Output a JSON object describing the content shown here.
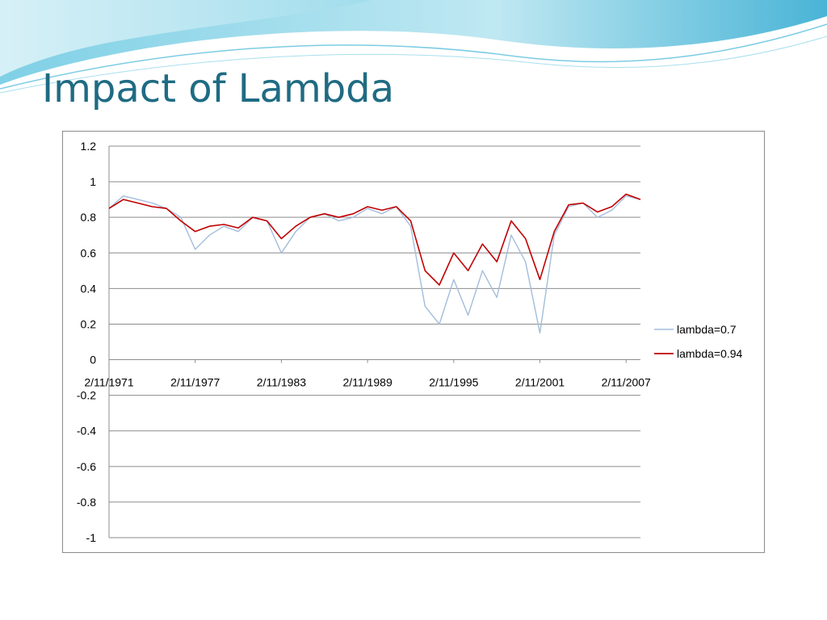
{
  "slide": {
    "title": "Impact of Lambda"
  },
  "colors": {
    "title": "#1f6b83",
    "series_light": "#a3bddb",
    "series_dark": "#c00000",
    "gridline": "#8c8c8c"
  },
  "chart_data": {
    "type": "line",
    "title": "",
    "xlabel": "",
    "ylabel": "",
    "ylim": [
      -1,
      1.2
    ],
    "yticks": [
      1.2,
      1,
      0.8,
      0.6,
      0.4,
      0.2,
      0,
      -0.2,
      -0.4,
      -0.6,
      -0.8,
      -1
    ],
    "xlim": [
      "2/11/1971",
      "2/11/2008"
    ],
    "xticks": [
      "2/11/1971",
      "2/11/1977",
      "2/11/1983",
      "2/11/1989",
      "2/11/1995",
      "2/11/2001",
      "2/11/2007"
    ],
    "grid": true,
    "legend": "right",
    "x": [
      "2/11/1971",
      "2/11/1972",
      "2/11/1973",
      "2/11/1974",
      "2/11/1975",
      "2/11/1976",
      "2/11/1977",
      "2/11/1978",
      "2/11/1979",
      "2/11/1980",
      "2/11/1981",
      "2/11/1982",
      "2/11/1983",
      "2/11/1984",
      "2/11/1985",
      "2/11/1986",
      "2/11/1987",
      "2/11/1988",
      "2/11/1989",
      "2/11/1990",
      "2/11/1991",
      "2/11/1992",
      "2/11/1993",
      "2/11/1994",
      "2/11/1995",
      "2/11/1996",
      "2/11/1997",
      "2/11/1998",
      "2/11/1999",
      "2/11/2000",
      "2/11/2001",
      "2/11/2002",
      "2/11/2003",
      "2/11/2004",
      "2/11/2005",
      "2/11/2006",
      "2/11/2007",
      "2/11/2008"
    ],
    "series": [
      {
        "name": "lambda=0.7",
        "color": "#a3bddb",
        "values": [
          0.85,
          0.92,
          0.9,
          0.88,
          0.85,
          0.8,
          0.62,
          0.7,
          0.75,
          0.72,
          0.8,
          0.78,
          0.6,
          0.72,
          0.8,
          0.82,
          0.78,
          0.8,
          0.85,
          0.82,
          0.86,
          0.75,
          0.3,
          0.2,
          0.45,
          0.25,
          0.5,
          0.35,
          0.7,
          0.55,
          0.15,
          0.7,
          0.86,
          0.88,
          0.8,
          0.84,
          0.92,
          0.9
        ]
      },
      {
        "name": "lambda=0.94",
        "color": "#c00000",
        "values": [
          0.85,
          0.9,
          0.88,
          0.86,
          0.85,
          0.78,
          0.72,
          0.75,
          0.76,
          0.74,
          0.8,
          0.78,
          0.68,
          0.75,
          0.8,
          0.82,
          0.8,
          0.82,
          0.86,
          0.84,
          0.86,
          0.78,
          0.5,
          0.42,
          0.6,
          0.5,
          0.65,
          0.55,
          0.78,
          0.68,
          0.45,
          0.72,
          0.87,
          0.88,
          0.83,
          0.86,
          0.93,
          0.9
        ]
      }
    ]
  }
}
